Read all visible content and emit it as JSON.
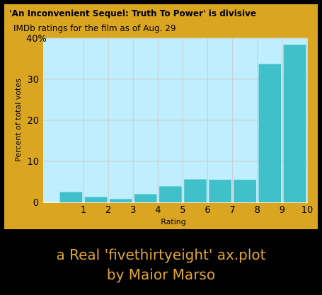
{
  "chart_data": {
    "type": "bar",
    "title": "'An Inconvenient Sequel: Truth To Power' is divisive",
    "subtitle": "IMDb ratings for the film as of Aug. 29",
    "xlabel": "Rating",
    "ylabel": "Percent of total votes",
    "categories": [
      1,
      2,
      3,
      4,
      5,
      6,
      7,
      8,
      9,
      10
    ],
    "values": [
      2.5,
      1.3,
      0.8,
      2.0,
      3.9,
      5.6,
      5.5,
      5.5,
      33.7,
      38.4
    ],
    "x_ticks": [
      "1",
      "2",
      "3",
      "4",
      "5",
      "6",
      "7",
      "8",
      "9",
      "10"
    ],
    "y_ticks": [
      "0",
      "10",
      "20",
      "30",
      "40%"
    ],
    "ylim": [
      0,
      40
    ],
    "grid": true,
    "colors": {
      "bar": "#40c0c8",
      "plot_background": "#bfefff",
      "figure_background": "#daa520",
      "grid": "#cbcbcb"
    }
  },
  "footer": {
    "line1": "a Real 'fivethirtyeight' ax.plot",
    "line2": "by Maior Marso",
    "color": "#e2a432"
  }
}
